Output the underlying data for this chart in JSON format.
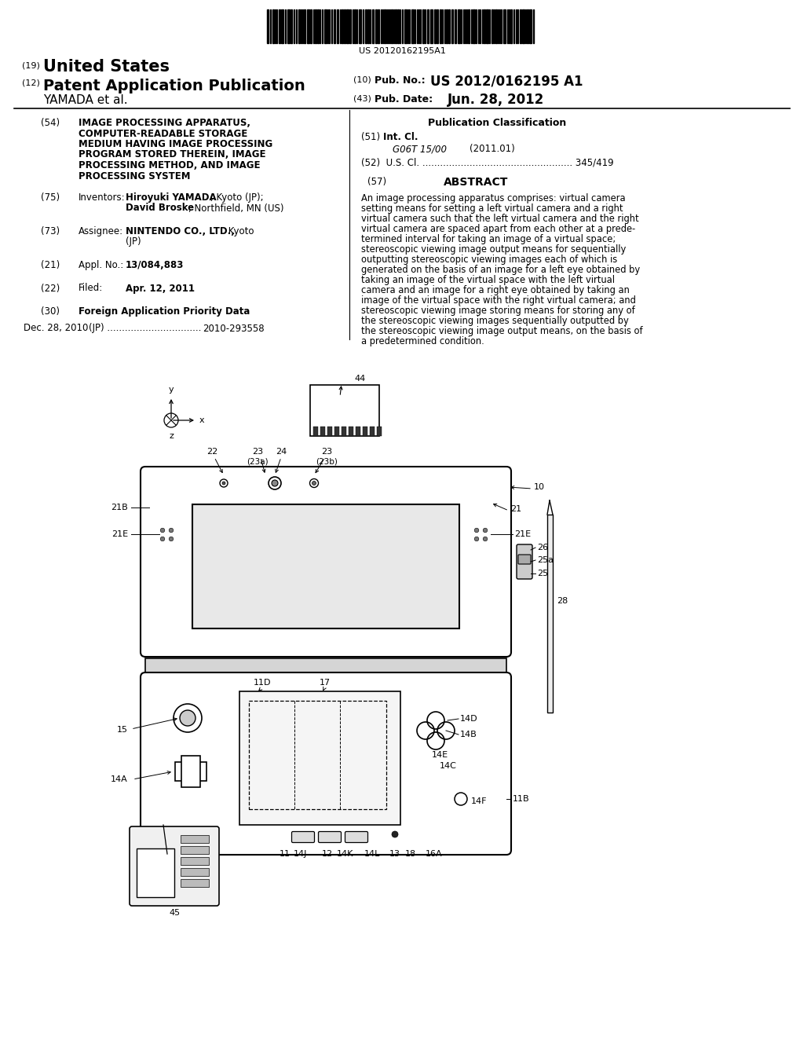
{
  "background_color": "#ffffff",
  "barcode_text": "US 20120162195A1",
  "title_19": "United States",
  "title_12": "Patent Application Publication",
  "pub_no_label": "Pub. No.:",
  "pub_no": "US 2012/0162195 A1",
  "inventor_label": "YAMADA et al.",
  "pub_date_label": "Pub. Date:",
  "pub_date": "Jun. 28, 2012",
  "field_54_label": "(54)",
  "field_54_lines": [
    "IMAGE PROCESSING APPARATUS,",
    "COMPUTER-READABLE STORAGE",
    "MEDIUM HAVING IMAGE PROCESSING",
    "PROGRAM STORED THEREIN, IMAGE",
    "PROCESSING METHOD, AND IMAGE",
    "PROCESSING SYSTEM"
  ],
  "pub_class_label": "Publication Classification",
  "int_cl_code": "G06T 15/00",
  "int_cl_date": "(2011.01)",
  "us_cl_line": "(52)  U.S. Cl. ................................................... 345/419",
  "abstract_text_lines": [
    "An image processing apparatus comprises: virtual camera",
    "setting means for setting a left virtual camera and a right",
    "virtual camera such that the left virtual camera and the right",
    "virtual camera are spaced apart from each other at a prede-",
    "termined interval for taking an image of a virtual space;",
    "stereoscopic viewing image output means for sequentially",
    "outputting stereoscopic viewing images each of which is",
    "generated on the basis of an image for a left eye obtained by",
    "taking an image of the virtual space with the left virtual",
    "camera and an image for a right eye obtained by taking an",
    "image of the virtual space with the right virtual camera; and",
    "stereoscopic viewing image storing means for storing any of",
    "the stereoscopic viewing images sequentially outputted by",
    "the stereoscopic viewing image output means, on the basis of",
    "a predetermined condition."
  ]
}
